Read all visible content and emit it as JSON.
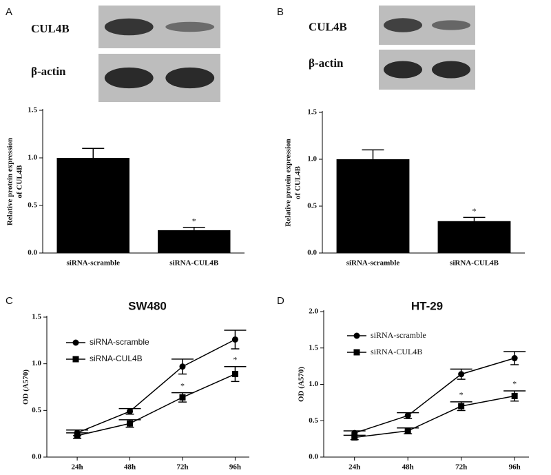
{
  "chart_data": [
    {
      "type": "bar",
      "panel": "A",
      "blots": [
        "CUL4B",
        "β-actin"
      ],
      "y_label": [
        "Relative protein expression",
        "of CUL4B"
      ],
      "categories": [
        "siRNA-scramble",
        "siRNA-CUL4B"
      ],
      "values": [
        1.0,
        0.24
      ],
      "errors": [
        0.1,
        0.03
      ],
      "annotations": [
        null,
        "*"
      ],
      "color": "#000000",
      "ylim": [
        0,
        1.5
      ],
      "yticks": [
        {
          "value": 0,
          "label": "0.0"
        },
        0.5,
        {
          "value": 1,
          "label": "1.0"
        },
        1.5
      ]
    },
    {
      "type": "bar",
      "panel": "B",
      "blots": [
        "CUL4B",
        "β-actin"
      ],
      "y_label": [
        "Relative protein expression",
        "of CUL4B"
      ],
      "categories": [
        "siRNA-scramble",
        "siRNA-CUL4B"
      ],
      "values": [
        1.0,
        0.34
      ],
      "errors": [
        0.1,
        0.04
      ],
      "annotations": [
        null,
        "*"
      ],
      "color": "#000000",
      "ylim": [
        0,
        1.5
      ],
      "yticks": [
        {
          "value": 0,
          "label": "0.0"
        },
        0.5,
        {
          "value": 1,
          "label": "1.0"
        },
        1.5
      ]
    },
    {
      "type": "line",
      "panel": "C",
      "title": "SW480",
      "y_label": [
        "OD (A570)"
      ],
      "categories": [
        "24h",
        "48h",
        "72h",
        "96h"
      ],
      "series": [
        {
          "name": "siRNA-scramble",
          "color": "#000000",
          "marker": "circle",
          "values": [
            0.26,
            0.49,
            0.97,
            1.26
          ],
          "errors": [
            0.03,
            0.03,
            0.08,
            0.1
          ],
          "annotations": [
            null,
            null,
            null,
            null
          ]
        },
        {
          "name": "siRNA-CUL4B",
          "color": "#000000",
          "marker": "square",
          "values": [
            0.23,
            0.36,
            0.64,
            0.89
          ],
          "errors": [
            0.03,
            0.04,
            0.05,
            0.08
          ],
          "annotations": [
            null,
            null,
            "*",
            "*"
          ]
        }
      ],
      "ylim": [
        0,
        1.5
      ],
      "yticks": [
        {
          "value": 0,
          "label": "0.0"
        },
        0.5,
        {
          "value": 1,
          "label": "1.0"
        },
        1.5
      ]
    },
    {
      "type": "line",
      "panel": "D",
      "title": "HT-29",
      "y_label": [
        "OD (A570)"
      ],
      "categories": [
        "24h",
        "48h",
        "72h",
        "96h"
      ],
      "series": [
        {
          "name": "siRNA-scramble",
          "color": "#000000",
          "marker": "circle",
          "values": [
            0.33,
            0.57,
            1.14,
            1.36
          ],
          "errors": [
            0.03,
            0.04,
            0.07,
            0.09
          ],
          "annotations": [
            null,
            null,
            null,
            null
          ]
        },
        {
          "name": "siRNA-CUL4B",
          "color": "#000000",
          "marker": "square",
          "values": [
            0.27,
            0.36,
            0.7,
            0.84
          ],
          "errors": [
            0.03,
            0.04,
            0.06,
            0.07
          ],
          "annotations": [
            null,
            null,
            "*",
            "*"
          ]
        }
      ],
      "ylim": [
        0,
        2
      ],
      "yticks": [
        {
          "value": 0,
          "label": "0.0"
        },
        0.5,
        {
          "value": 1,
          "label": "1.0"
        },
        1.5,
        {
          "value": 2,
          "label": "2.0"
        }
      ]
    }
  ]
}
